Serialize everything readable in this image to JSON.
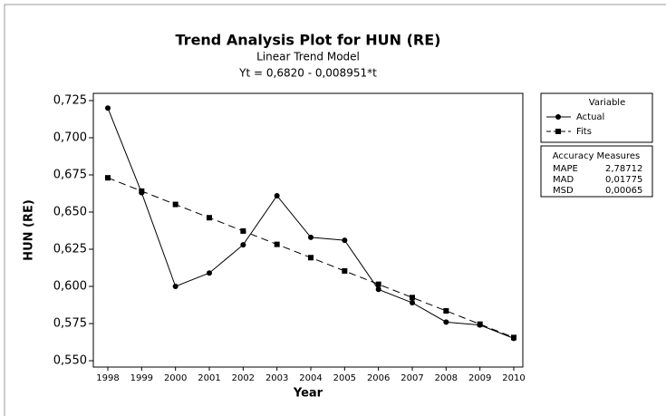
{
  "chart_data": {
    "type": "line",
    "title": "Trend Analysis Plot for HUN (RE)",
    "subtitle": "Linear Trend Model",
    "equation": "Yt = 0,6820 - 0,008951*t",
    "x_label": "Year",
    "y_label": "HUN (RE)",
    "categories": [
      "1998",
      "1999",
      "2000",
      "2001",
      "2002",
      "2003",
      "2004",
      "2005",
      "2006",
      "2007",
      "2008",
      "2009",
      "2010"
    ],
    "series": [
      {
        "name": "Actual",
        "color": "#000000",
        "marker": "circle",
        "dashed": false,
        "values": [
          0.72,
          0.663,
          0.6,
          0.609,
          0.628,
          0.661,
          0.633,
          0.631,
          0.598,
          0.589,
          0.576,
          0.574,
          0.565
        ]
      },
      {
        "name": "Fits",
        "color": "#000000",
        "marker": "square",
        "dashed": true,
        "values": [
          0.67305,
          0.6641,
          0.65515,
          0.6462,
          0.63724,
          0.62829,
          0.61934,
          0.61039,
          0.60144,
          0.59249,
          0.58354,
          0.57459,
          0.56563
        ]
      }
    ],
    "ylim": [
      0.55,
      0.725
    ],
    "yticks": [
      {
        "value": 0.55,
        "label": "0,550"
      },
      {
        "value": 0.575,
        "label": "0,575"
      },
      {
        "value": 0.6,
        "label": "0,600"
      },
      {
        "value": 0.625,
        "label": "0,625"
      },
      {
        "value": 0.65,
        "label": "0,650"
      },
      {
        "value": 0.675,
        "label": "0,675"
      },
      {
        "value": 0.7,
        "label": "0,700"
      },
      {
        "value": 0.725,
        "label": "0,725"
      }
    ],
    "legend": {
      "title": "Variable",
      "position": "right"
    },
    "accuracy": {
      "title": "Accuracy Measures",
      "rows": [
        [
          "MAPE",
          "2,78712"
        ],
        [
          "MAD",
          "0,01775"
        ],
        [
          "MSD",
          "0,00065"
        ]
      ]
    }
  }
}
